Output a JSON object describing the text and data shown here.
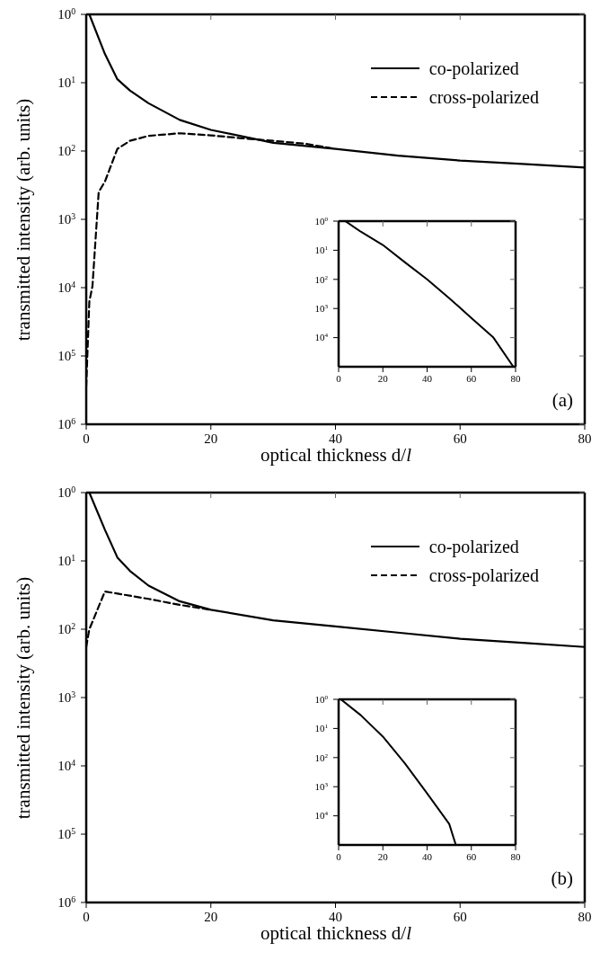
{
  "chart_data": [
    {
      "type": "line",
      "xlabel": "optical thickness d/l",
      "ylabel": "transmitted intensity (arb. units)",
      "log": "y",
      "xlim": [
        0,
        80
      ],
      "xticks": [
        0,
        20,
        40,
        60,
        80
      ],
      "ylim": [
        1000000,
        1
      ],
      "yticks": [
        {
          "value": 1,
          "label": "10$^{0}$"
        },
        {
          "value": 10,
          "label": "10$^{1}$"
        },
        {
          "value": 100,
          "label": "10$^{2}$"
        },
        {
          "value": 1000,
          "label": "10$^{3}$"
        },
        {
          "value": 10000,
          "label": "10$^{4}$"
        },
        {
          "value": 100000,
          "label": "10$^{5}$"
        },
        {
          "value": 1000000,
          "label": "10$^{6}$"
        }
      ],
      "legend": "top right",
      "marker": "none",
      "annotations": [
        "(a)"
      ],
      "series": [
        {
          "name": "co-polarized",
          "color": "#000000",
          "line_style": "solid",
          "x": [
            0.5,
            3,
            5,
            7,
            10,
            15,
            20,
            30,
            40,
            50,
            60,
            70,
            80
          ],
          "values": [
            1,
            3.8,
            8.9,
            13,
            20,
            35,
            49,
            76,
            93,
            117,
            138,
            155,
            174
          ]
        },
        {
          "name": "cross-polarized",
          "color": "#000000",
          "line_style": "dashed",
          "x": [
            0,
            0.5,
            1,
            2,
            3,
            5,
            7,
            10,
            15,
            20,
            25,
            30,
            35,
            40
          ],
          "values": [
            280000,
            16000,
            9500,
            400,
            280,
            93,
            71,
            60,
            55,
            59,
            65,
            71,
            78,
            93
          ]
        }
      ]
    },
    {
      "type": "line",
      "log": "y",
      "xlim": [
        0,
        80
      ],
      "xticks": [
        0,
        20,
        40,
        60,
        80
      ],
      "ylim": [
        100000,
        1
      ],
      "yticks": [
        {
          "value": 1,
          "label": "10$^{0}$"
        },
        {
          "value": 10,
          "label": "10$^{1}$"
        },
        {
          "value": 100,
          "label": "10$^{2}$"
        },
        {
          "value": 1000,
          "label": "10$^{3}$"
        },
        {
          "value": 10000,
          "label": "10$^{4}$"
        }
      ],
      "marker": "none",
      "series": [
        {
          "color": "#000000",
          "line_style": "solid",
          "x": [
            3,
            10,
            20,
            30,
            40,
            50,
            60,
            70,
            79
          ],
          "values": [
            1,
            2.3,
            6.6,
            26,
            100,
            440,
            2100,
            10000,
            100000
          ]
        }
      ]
    },
    {
      "type": "line",
      "xlabel": "optical thickness d/l",
      "ylabel": "transmitted intensity (arb. units)",
      "log": "y",
      "xlim": [
        0,
        80
      ],
      "xticks": [
        0,
        20,
        40,
        60,
        80
      ],
      "ylim": [
        1000000,
        1
      ],
      "yticks": [
        {
          "value": 1,
          "label": "10$^{0}$"
        },
        {
          "value": 10,
          "label": "10$^{1}$"
        },
        {
          "value": 100,
          "label": "10$^{2}$"
        },
        {
          "value": 1000,
          "label": "10$^{3}$"
        },
        {
          "value": 10000,
          "label": "10$^{4}$"
        },
        {
          "value": 100000,
          "label": "10$^{5}$"
        },
        {
          "value": 1000000,
          "label": "10$^{6}$"
        }
      ],
      "legend": "top right",
      "marker": "none",
      "annotations": [
        "(b)"
      ],
      "series": [
        {
          "name": "co-polarized",
          "color": "#000000",
          "line_style": "solid",
          "x": [
            0.5,
            3,
            5,
            7,
            10,
            15,
            20,
            30,
            40,
            50,
            60,
            70,
            80
          ],
          "values": [
            1,
            3.5,
            8.9,
            14,
            23,
            39,
            52,
            74,
            91,
            112,
            138,
            158,
            182
          ]
        },
        {
          "name": "cross-polarized",
          "color": "#000000",
          "line_style": "dashed",
          "x": [
            0,
            0.5,
            3,
            10,
            15,
            20
          ],
          "values": [
            182,
            100,
            28,
            36,
            44,
            52
          ]
        }
      ]
    },
    {
      "type": "line",
      "log": "y",
      "xlim": [
        0,
        80
      ],
      "xticks": [
        0,
        20,
        40,
        60,
        80
      ],
      "ylim": [
        100000,
        1
      ],
      "yticks": [
        {
          "value": 1,
          "label": "10$^{0}$"
        },
        {
          "value": 10,
          "label": "10$^{1}$"
        },
        {
          "value": 100,
          "label": "10$^{2}$"
        },
        {
          "value": 1000,
          "label": "10$^{3}$"
        },
        {
          "value": 10000,
          "label": "10$^{4}$"
        }
      ],
      "marker": "none",
      "series": [
        {
          "color": "#000000",
          "line_style": "solid",
          "x": [
            1,
            10,
            20,
            30,
            40,
            50,
            53
          ],
          "values": [
            1,
            3.5,
            19,
            160,
            1700,
            19000,
            100000
          ]
        }
      ]
    }
  ]
}
